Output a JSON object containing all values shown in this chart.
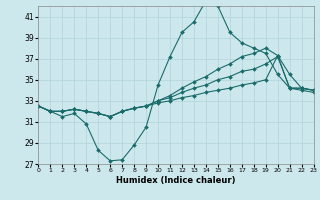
{
  "xlabel": "Humidex (Indice chaleur)",
  "bg_color": "#cde8ec",
  "grid_color": "#b0d4d8",
  "line_color": "#1a6b6b",
  "xlim": [
    0,
    23
  ],
  "ylim": [
    27,
    42
  ],
  "yticks": [
    27,
    29,
    31,
    33,
    35,
    37,
    39,
    41
  ],
  "xticks": [
    0,
    1,
    2,
    3,
    4,
    5,
    6,
    7,
    8,
    9,
    10,
    11,
    12,
    13,
    14,
    15,
    16,
    17,
    18,
    19,
    20,
    21,
    22,
    23
  ],
  "lines": [
    {
      "x": [
        0,
        1,
        2,
        3,
        4,
        5,
        6,
        7,
        8,
        9,
        10,
        11,
        12,
        13,
        14,
        15,
        16,
        17,
        18,
        19,
        20,
        21,
        22,
        23
      ],
      "y": [
        32.5,
        32.0,
        31.5,
        31.8,
        30.8,
        28.3,
        27.3,
        27.4,
        28.8,
        30.5,
        34.5,
        37.2,
        39.5,
        40.5,
        42.5,
        42.0,
        39.5,
        38.5,
        38.0,
        37.5,
        35.5,
        34.2,
        34.0,
        33.8
      ]
    },
    {
      "x": [
        0,
        1,
        2,
        3,
        4,
        5,
        6,
        7,
        8,
        9,
        10,
        11,
        12,
        13,
        14,
        15,
        16,
        17,
        18,
        19,
        20,
        21,
        22,
        23
      ],
      "y": [
        32.5,
        32.0,
        32.0,
        32.2,
        32.0,
        31.8,
        31.5,
        32.0,
        32.3,
        32.5,
        33.0,
        33.5,
        34.2,
        34.8,
        35.3,
        36.0,
        36.5,
        37.2,
        37.5,
        38.0,
        37.3,
        35.5,
        34.2,
        34.0
      ]
    },
    {
      "x": [
        0,
        1,
        2,
        3,
        4,
        5,
        6,
        7,
        8,
        9,
        10,
        11,
        12,
        13,
        14,
        15,
        16,
        17,
        18,
        19,
        20,
        21,
        22,
        23
      ],
      "y": [
        32.5,
        32.0,
        32.0,
        32.2,
        32.0,
        31.8,
        31.5,
        32.0,
        32.3,
        32.5,
        33.0,
        33.3,
        33.8,
        34.2,
        34.5,
        35.0,
        35.3,
        35.8,
        36.0,
        36.5,
        37.2,
        34.2,
        34.2,
        34.0
      ]
    },
    {
      "x": [
        0,
        1,
        2,
        3,
        4,
        5,
        6,
        7,
        8,
        9,
        10,
        11,
        12,
        13,
        14,
        15,
        16,
        17,
        18,
        19,
        20,
        21,
        22,
        23
      ],
      "y": [
        32.5,
        32.0,
        32.0,
        32.2,
        32.0,
        31.8,
        31.5,
        32.0,
        32.3,
        32.5,
        32.8,
        33.0,
        33.3,
        33.5,
        33.8,
        34.0,
        34.2,
        34.5,
        34.7,
        35.0,
        37.3,
        34.2,
        34.2,
        34.0
      ]
    }
  ]
}
